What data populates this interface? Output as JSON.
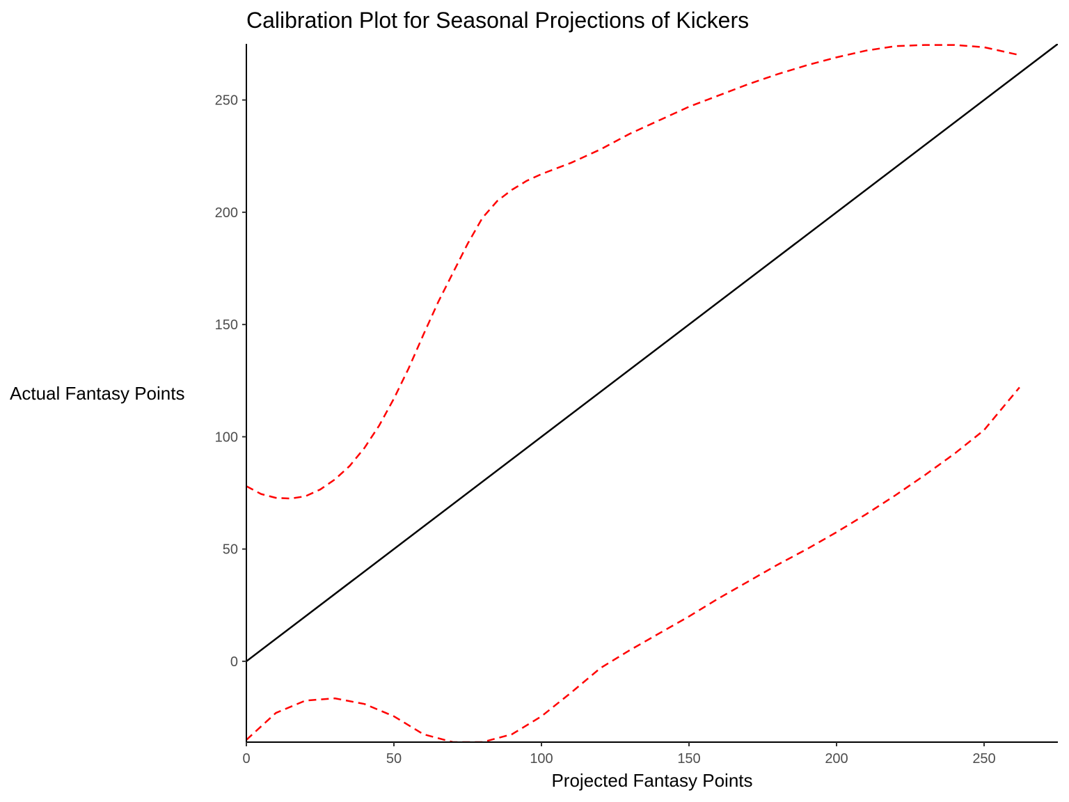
{
  "chart_data": {
    "type": "line",
    "title": "Calibration Plot for Seasonal Projections of Kickers",
    "xlabel": "Projected Fantasy Points",
    "ylabel": "Actual Fantasy Points",
    "xlim": [
      0,
      275
    ],
    "ylim": [
      -36,
      275
    ],
    "x_ticks": [
      0,
      50,
      100,
      150,
      200,
      250
    ],
    "y_ticks": [
      0,
      50,
      100,
      150,
      200,
      250
    ],
    "grid": false,
    "legend": "none",
    "series": [
      {
        "style": "solid",
        "color": "#000000",
        "x": [
          0,
          275
        ],
        "y": [
          0,
          275
        ]
      },
      {
        "style": "dashed",
        "color": "#ff0000",
        "x": [
          0,
          5,
          10,
          15,
          20,
          25,
          30,
          35,
          40,
          45,
          50,
          55,
          60,
          65,
          70,
          75,
          80,
          85,
          90,
          95,
          100,
          110,
          120,
          130,
          140,
          150,
          160,
          170,
          180,
          190,
          200,
          210,
          220,
          230,
          240,
          250,
          262
        ],
        "y": [
          78,
          74.5,
          72.8,
          72.5,
          73.5,
          76.5,
          81,
          87,
          95,
          105,
          117,
          130.5,
          145.5,
          160,
          173,
          186,
          197.5,
          205,
          210,
          214,
          217,
          222,
          228,
          235,
          241,
          247,
          252,
          257,
          261.5,
          265.5,
          269,
          272,
          274,
          274.5,
          274.5,
          273.5,
          270
        ]
      },
      {
        "style": "dashed",
        "color": "#ff0000",
        "x": [
          0,
          10,
          20,
          30,
          40,
          50,
          60,
          70,
          80,
          90,
          100,
          110,
          120,
          130,
          140,
          150,
          160,
          170,
          180,
          190,
          200,
          210,
          220,
          230,
          240,
          250,
          262
        ],
        "y": [
          -35,
          -23,
          -17.5,
          -16.5,
          -19,
          -24.5,
          -32.5,
          -36,
          -36,
          -32.5,
          -24.5,
          -14,
          -3,
          5,
          12.5,
          20,
          28,
          35.5,
          43,
          50,
          57.5,
          65.5,
          74,
          83,
          92.5,
          103,
          122
        ]
      }
    ]
  }
}
